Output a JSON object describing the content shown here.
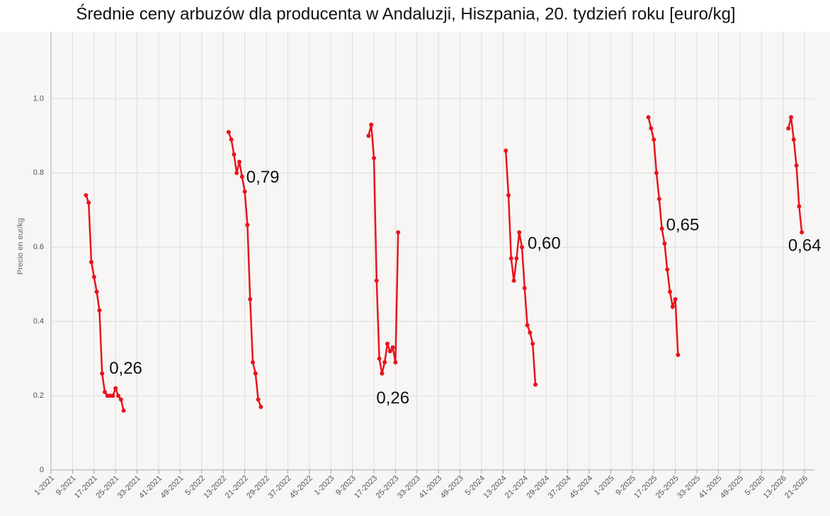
{
  "chart_data": {
    "type": "line",
    "title": "Średnie ceny arbuzów dla producenta w Andaluzji, Hiszpania, 20. tydzień roku [euro/kg]",
    "ylabel": "Precio en eur/kg",
    "ylim": [
      0,
      1.18
    ],
    "yticks": [
      0,
      0.2,
      0.4,
      0.6,
      0.8,
      {
        "value": 1,
        "label": "1.0"
      }
    ],
    "xticks": [
      "1-2021",
      "9-2021",
      "17-2021",
      "25-2021",
      "33-2021",
      "41-2021",
      "49-2021",
      "5-2022",
      "13-2022",
      "21-2022",
      "29-2022",
      "37-2022",
      "45-2022",
      "1-2023",
      "9-2023",
      "17-2023",
      "25-2023",
      "33-2023",
      "41-2023",
      "49-2023",
      "5-2024",
      "13-2024",
      "21-2024",
      "29-2024",
      "37-2024",
      "45-2024",
      "1-2025",
      "9-2025",
      "17-2025",
      "25-2025",
      "33-2025",
      "41-2025",
      "49-2025",
      "5-2026",
      "13-2026",
      "21-2026"
    ],
    "grid": true,
    "series": [
      {
        "color": "#e8141c",
        "x": [
          "14-2021",
          "15-2021",
          "16-2021",
          "17-2021",
          "18-2021",
          "19-2021",
          "20-2021",
          "21-2021",
          "22-2021",
          "23-2021",
          "24-2021",
          "25-2021",
          "26-2021",
          "27-2021",
          "28-2021"
        ],
        "values": [
          0.74,
          0.72,
          0.56,
          0.52,
          0.48,
          0.43,
          0.26,
          0.21,
          0.2,
          0.2,
          0.2,
          0.22,
          0.2,
          0.19,
          0.16
        ]
      },
      {
        "color": "#e8141c",
        "x": [
          "15-2022",
          "16-2022",
          "17-2022",
          "18-2022",
          "19-2022",
          "20-2022",
          "21-2022",
          "22-2022",
          "23-2022",
          "24-2022",
          "25-2022",
          "26-2022",
          "27-2022"
        ],
        "values": [
          0.91,
          0.89,
          0.85,
          0.8,
          0.83,
          0.79,
          0.75,
          0.66,
          0.46,
          0.29,
          0.26,
          0.19,
          0.17
        ]
      },
      {
        "color": "#e8141c",
        "x": [
          "15-2023",
          "16-2023",
          "17-2023",
          "18-2023",
          "19-2023",
          "20-2023",
          "21-2023",
          "22-2023",
          "23-2023",
          "24-2023",
          "25-2023",
          "26-2023"
        ],
        "values": [
          0.9,
          0.93,
          0.84,
          0.51,
          0.3,
          0.26,
          0.29,
          0.34,
          0.32,
          0.33,
          0.29,
          0.64
        ]
      },
      {
        "color": "#e8141c",
        "x": [
          "14-2024",
          "15-2024",
          "16-2024",
          "17-2024",
          "18-2024",
          "19-2024",
          "20-2024",
          "21-2024",
          "22-2024",
          "23-2024",
          "24-2024",
          "25-2024"
        ],
        "values": [
          0.86,
          0.74,
          0.57,
          0.51,
          0.57,
          0.64,
          0.6,
          0.49,
          0.39,
          0.37,
          0.34,
          0.23
        ]
      },
      {
        "color": "#e8141c",
        "x": [
          "15-2025",
          "16-2025",
          "17-2025",
          "18-2025",
          "19-2025",
          "20-2025",
          "21-2025",
          "22-2025",
          "23-2025",
          "24-2025",
          "25-2025",
          "26-2025"
        ],
        "values": [
          0.95,
          0.92,
          0.89,
          0.8,
          0.73,
          0.65,
          0.61,
          0.54,
          0.48,
          0.44,
          0.46,
          0.31
        ]
      },
      {
        "color": "#e8141c",
        "x": [
          "15-2026",
          "16-2026",
          "17-2026",
          "18-2026",
          "19-2026",
          "20-2026"
        ],
        "values": [
          0.92,
          0.95,
          0.89,
          0.82,
          0.71,
          0.64
        ]
      }
    ],
    "annotations": [
      {
        "x": "20-2021",
        "value": 0.26,
        "label": "0,26"
      },
      {
        "x": "20-2022",
        "value": 0.79,
        "label": "0,79"
      },
      {
        "x": "20-2023",
        "value": 0.26,
        "label": "0,26"
      },
      {
        "x": "20-2024",
        "value": 0.6,
        "label": "0,60"
      },
      {
        "x": "20-2025",
        "value": 0.65,
        "label": "0,65"
      },
      {
        "x": "20-2026",
        "value": 0.64,
        "label": "0,64"
      }
    ]
  }
}
